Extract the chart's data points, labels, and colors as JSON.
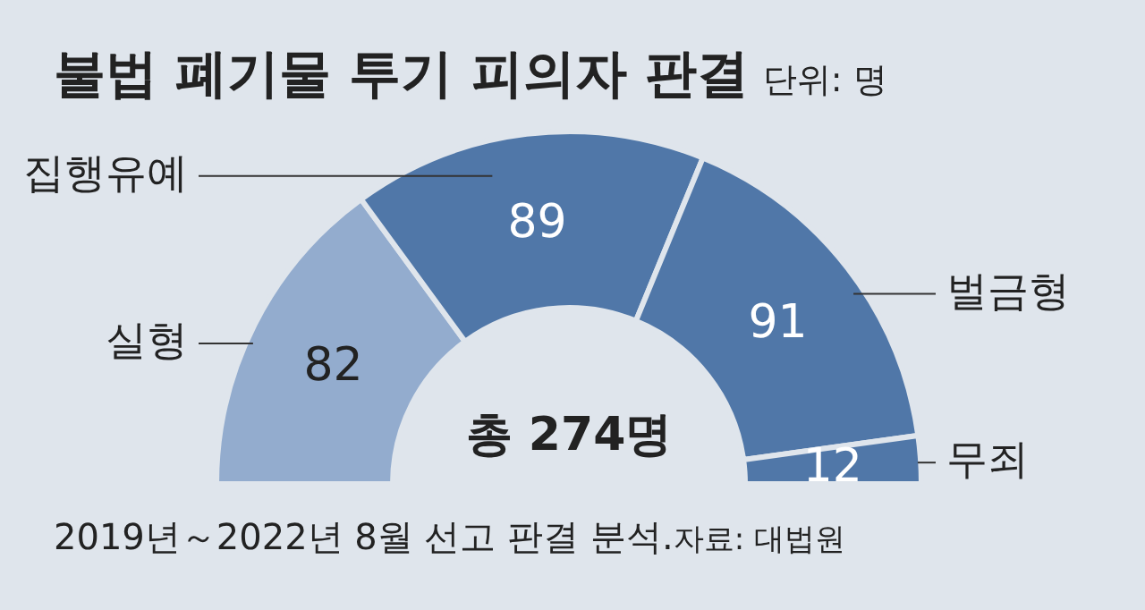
{
  "chart_data": {
    "type": "donut",
    "title": "불법 폐기물 투기 피의자 판결",
    "subtitle": "단위: 명",
    "categories": [
      "실형",
      "집행유예",
      "벌금형",
      "무죄"
    ],
    "values": [
      82,
      89,
      91,
      12
    ],
    "colors": [
      "#93acce",
      "#5077a8",
      "#5077a8",
      "#5077a8"
    ],
    "data_labels": true,
    "legend": false,
    "annotations": [
      "총 274명",
      "2019년～2022년 8월 선고 판결 분석.",
      "자료: 대법원"
    ]
  }
}
